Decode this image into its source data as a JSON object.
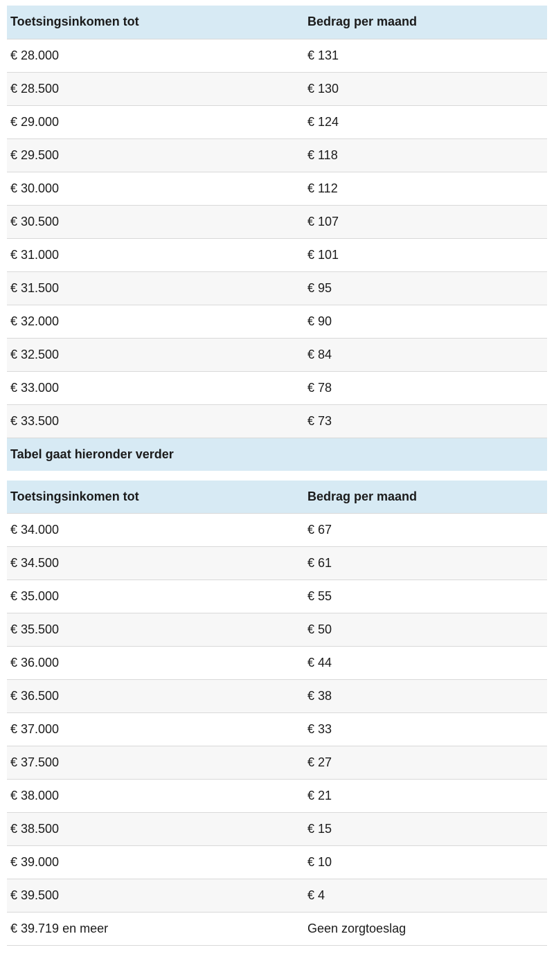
{
  "colors": {
    "header-bg": "#d7eaf4",
    "alt-row-bg": "#f7f7f7",
    "border-color": "#d9d9d9",
    "text-color": "#1b1b1b"
  },
  "divider": {
    "label": "Tabel gaat hieronder verder"
  },
  "table1": {
    "headers": {
      "income": "Toetsingsinkomen tot",
      "amount": "Bedrag per maand"
    },
    "rows": [
      {
        "income": "€ 28.000",
        "amount": "€ 131"
      },
      {
        "income": "€ 28.500",
        "amount": "€ 130"
      },
      {
        "income": "€ 29.000",
        "amount": "€ 124"
      },
      {
        "income": "€ 29.500",
        "amount": "€ 118"
      },
      {
        "income": "€ 30.000",
        "amount": "€ 112"
      },
      {
        "income": "€ 30.500",
        "amount": "€ 107"
      },
      {
        "income": "€ 31.000",
        "amount": "€ 101"
      },
      {
        "income": "€ 31.500",
        "amount": "€ 95"
      },
      {
        "income": "€ 32.000",
        "amount": "€ 90"
      },
      {
        "income": "€ 32.500",
        "amount": "€ 84"
      },
      {
        "income": "€ 33.000",
        "amount": "€ 78"
      },
      {
        "income": "€ 33.500",
        "amount": "€ 73"
      }
    ]
  },
  "table2": {
    "headers": {
      "income": "Toetsingsinkomen tot",
      "amount": "Bedrag per maand"
    },
    "rows": [
      {
        "income": "€ 34.000",
        "amount": "€ 67"
      },
      {
        "income": "€ 34.500",
        "amount": "€ 61"
      },
      {
        "income": "€ 35.000",
        "amount": "€ 55"
      },
      {
        "income": "€ 35.500",
        "amount": "€ 50"
      },
      {
        "income": "€ 36.000",
        "amount": "€ 44"
      },
      {
        "income": "€ 36.500",
        "amount": "€ 38"
      },
      {
        "income": "€ 37.000",
        "amount": "€ 33"
      },
      {
        "income": "€ 37.500",
        "amount": "€ 27"
      },
      {
        "income": "€ 38.000",
        "amount": "€ 21"
      },
      {
        "income": "€ 38.500",
        "amount": "€ 15"
      },
      {
        "income": "€ 39.000",
        "amount": "€ 10"
      },
      {
        "income": "€ 39.500",
        "amount": "€ 4"
      },
      {
        "income": "€ 39.719 en meer",
        "amount": "Geen zorgtoeslag"
      }
    ]
  }
}
